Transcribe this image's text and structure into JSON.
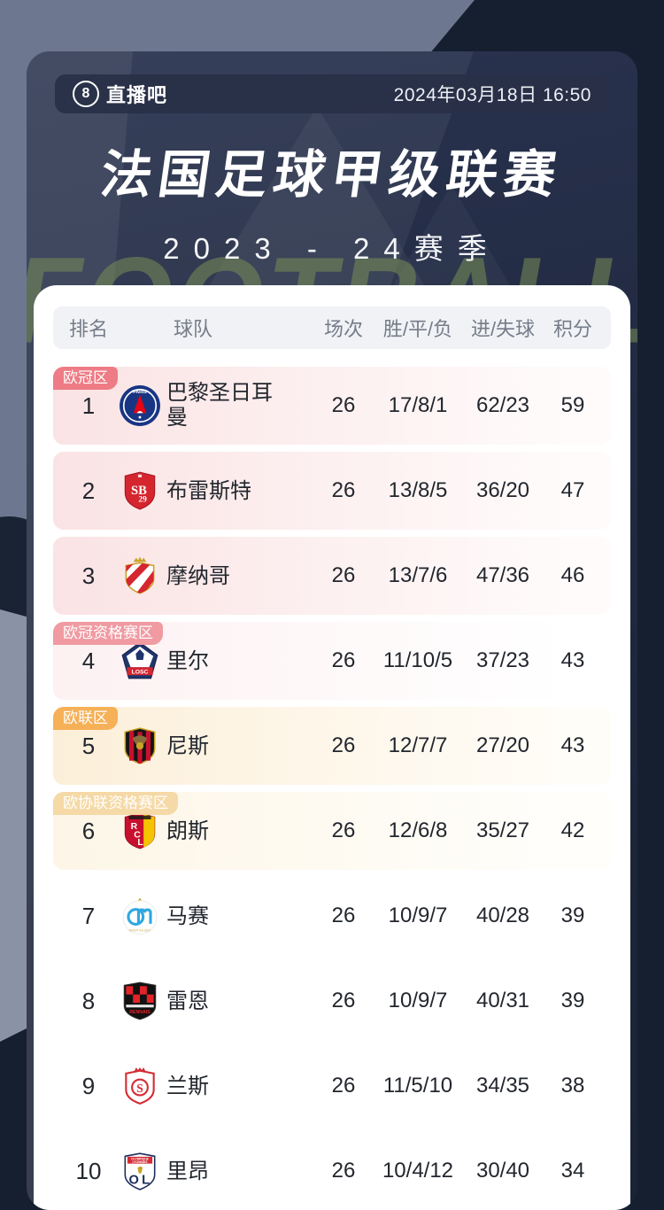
{
  "header": {
    "brand": "直播吧",
    "brand_icon": "8",
    "datetime": "2024年03月18日 16:50"
  },
  "title": "法国足球甲级联赛",
  "season": "2023 - 24赛季",
  "watermark": "FOOTBALL",
  "colors": {
    "page_bg": "#161f30",
    "panel_bg": "#222b42",
    "card_bg": "#ffffff"
  },
  "table": {
    "columns": [
      "排名",
      "球队",
      "场次",
      "胜/平/负",
      "进/失球",
      "积分"
    ],
    "zones": {
      "ucl": {
        "label": "欧冠区",
        "tag_color": "#ee7b85",
        "row_bg": [
          "#fae3e4",
          "#fffbfb"
        ]
      },
      "ucl_q": {
        "label": "欧冠资格赛区",
        "tag_color": "#f09aa2",
        "row_bg": [
          "#fdf1f2",
          "#ffffff"
        ]
      },
      "uel": {
        "label": "欧联区",
        "tag_color": "#f6b057",
        "row_bg": [
          "#fcefd9",
          "#fffdf8"
        ]
      },
      "uecl_q": {
        "label": "欧协联资格赛区",
        "tag_color": "#f5d9a6",
        "row_bg": [
          "#fdf6e7",
          "#fffefb"
        ]
      }
    },
    "rows": [
      {
        "rank": "1",
        "team": "巴黎圣日耳曼",
        "logo": "psg",
        "played": "26",
        "wdl": "17/8/1",
        "goals": "62/23",
        "points": "59",
        "zone": "ucl",
        "zone_label": "欧冠区"
      },
      {
        "rank": "2",
        "team": "布雷斯特",
        "logo": "brest",
        "played": "26",
        "wdl": "13/8/5",
        "goals": "36/20",
        "points": "47",
        "zone": "ucl",
        "zone_label": null
      },
      {
        "rank": "3",
        "team": "摩纳哥",
        "logo": "monaco",
        "played": "26",
        "wdl": "13/7/6",
        "goals": "47/36",
        "points": "46",
        "zone": "ucl",
        "zone_label": null
      },
      {
        "rank": "4",
        "team": "里尔",
        "logo": "lille",
        "played": "26",
        "wdl": "11/10/5",
        "goals": "37/23",
        "points": "43",
        "zone": "ucl_q",
        "zone_label": "欧冠资格赛区"
      },
      {
        "rank": "5",
        "team": "尼斯",
        "logo": "nice",
        "played": "26",
        "wdl": "12/7/7",
        "goals": "27/20",
        "points": "43",
        "zone": "uel",
        "zone_label": "欧联区"
      },
      {
        "rank": "6",
        "team": "朗斯",
        "logo": "lens",
        "played": "26",
        "wdl": "12/6/8",
        "goals": "35/27",
        "points": "42",
        "zone": "uecl_q",
        "zone_label": "欧协联资格赛区"
      },
      {
        "rank": "7",
        "team": "马赛",
        "logo": "marseille",
        "played": "26",
        "wdl": "10/9/7",
        "goals": "40/28",
        "points": "39",
        "zone": null,
        "zone_label": null
      },
      {
        "rank": "8",
        "team": "雷恩",
        "logo": "rennes",
        "played": "26",
        "wdl": "10/9/7",
        "goals": "40/31",
        "points": "39",
        "zone": null,
        "zone_label": null
      },
      {
        "rank": "9",
        "team": "兰斯",
        "logo": "reims",
        "played": "26",
        "wdl": "11/5/10",
        "goals": "34/35",
        "points": "38",
        "zone": null,
        "zone_label": null
      },
      {
        "rank": "10",
        "team": "里昂",
        "logo": "lyon",
        "played": "26",
        "wdl": "10/4/12",
        "goals": "30/40",
        "points": "34",
        "zone": null,
        "zone_label": null
      }
    ]
  }
}
